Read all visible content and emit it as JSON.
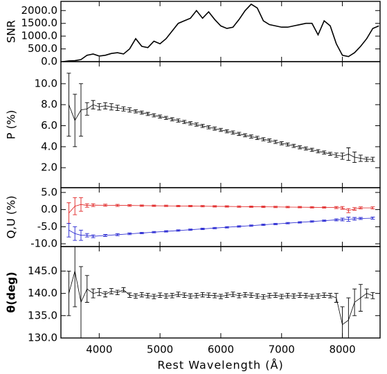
{
  "chart_data": [
    {
      "type": "line",
      "ylabel": "SNR",
      "x": [
        3400,
        3500,
        3600,
        3700,
        3800,
        3900,
        4000,
        4100,
        4200,
        4300,
        4400,
        4500,
        4600,
        4700,
        4800,
        4900,
        5000,
        5100,
        5200,
        5300,
        5400,
        5500,
        5600,
        5700,
        5800,
        5900,
        6000,
        6100,
        6200,
        6300,
        6400,
        6500,
        6600,
        6700,
        6800,
        6900,
        7000,
        7100,
        7200,
        7300,
        7400,
        7500,
        7600,
        7700,
        7800,
        7900,
        8000,
        8100,
        8200,
        8300,
        8400,
        8500,
        8600
      ],
      "series": [
        {
          "color": "#000000",
          "values": [
            0,
            30,
            40,
            80,
            250,
            300,
            220,
            250,
            320,
            350,
            300,
            500,
            900,
            600,
            550,
            800,
            700,
            900,
            1200,
            1500,
            1600,
            1700,
            2000,
            1700,
            1950,
            1650,
            1400,
            1300,
            1350,
            1650,
            2000,
            2250,
            2100,
            1600,
            1450,
            1400,
            1350,
            1350,
            1400,
            1450,
            1500,
            1500,
            1050,
            1600,
            1400,
            700,
            250,
            200,
            350,
            600,
            900,
            1300,
            1400
          ]
        }
      ],
      "xlim": [
        3370,
        8620
      ],
      "xticks": [
        4000,
        5000,
        6000,
        7000,
        8000
      ],
      "ylim": [
        0,
        2360
      ],
      "yticks": [
        {
          "value": 0,
          "label": "0.0"
        },
        {
          "value": 500,
          "label": "500.0"
        },
        {
          "value": 1000,
          "label": "1000.0"
        },
        {
          "value": 1500,
          "label": "1500.0"
        },
        {
          "value": 2000,
          "label": "2000.0"
        }
      ]
    },
    {
      "type": "errorbar",
      "ylabel": "P  (%)",
      "x": [
        3500,
        3600,
        3700,
        3800,
        3900,
        4000,
        4100,
        4200,
        4300,
        4400,
        4500,
        4600,
        4700,
        4800,
        4900,
        5000,
        5100,
        5200,
        5300,
        5400,
        5500,
        5600,
        5700,
        5800,
        5900,
        6000,
        6100,
        6200,
        6300,
        6400,
        6500,
        6600,
        6700,
        6800,
        6900,
        7000,
        7100,
        7200,
        7300,
        7400,
        7500,
        7600,
        7700,
        7800,
        7900,
        8000,
        8100,
        8200,
        8300,
        8400,
        8500
      ],
      "series": [
        {
          "color": "#000000",
          "values": [
            8.0,
            6.5,
            7.5,
            7.6,
            8.0,
            7.8,
            7.9,
            7.8,
            7.7,
            7.6,
            7.5,
            7.37,
            7.25,
            7.12,
            6.99,
            6.87,
            6.74,
            6.61,
            6.49,
            6.36,
            6.23,
            6.11,
            5.98,
            5.85,
            5.73,
            5.6,
            5.47,
            5.35,
            5.22,
            5.09,
            4.97,
            4.84,
            4.71,
            4.59,
            4.46,
            4.33,
            4.21,
            4.08,
            3.95,
            3.83,
            3.7,
            3.57,
            3.45,
            3.32,
            3.2,
            3.1,
            3.3,
            3.0,
            2.9,
            2.8,
            2.8
          ],
          "errors": [
            3.0,
            2.5,
            2.5,
            0.6,
            0.4,
            0.3,
            0.3,
            0.3,
            0.25,
            0.2,
            0.2,
            0.15,
            0.15,
            0.15,
            0.15,
            0.15,
            0.15,
            0.15,
            0.15,
            0.15,
            0.15,
            0.15,
            0.15,
            0.15,
            0.15,
            0.15,
            0.15,
            0.15,
            0.15,
            0.15,
            0.15,
            0.15,
            0.15,
            0.15,
            0.15,
            0.15,
            0.15,
            0.15,
            0.15,
            0.15,
            0.15,
            0.15,
            0.15,
            0.15,
            0.2,
            0.3,
            0.6,
            0.5,
            0.3,
            0.2,
            0.2
          ]
        }
      ],
      "xlim": [
        3370,
        8620
      ],
      "xticks": [
        4000,
        5000,
        6000,
        7000,
        8000
      ],
      "ylim": [
        0.1,
        12.1
      ],
      "yticks": [
        {
          "value": 2,
          "label": "2.0"
        },
        {
          "value": 4,
          "label": "4.0"
        },
        {
          "value": 6,
          "label": "6.0"
        },
        {
          "value": 8,
          "label": "8.0"
        },
        {
          "value": 10,
          "label": "10.0"
        }
      ]
    },
    {
      "type": "errorbar",
      "ylabel": "Q,U  (%)",
      "x": [
        3500,
        3600,
        3700,
        3800,
        3900,
        4100,
        4300,
        4500,
        4700,
        4900,
        5100,
        5300,
        5500,
        5700,
        5900,
        6100,
        6300,
        6500,
        6700,
        6900,
        7100,
        7300,
        7500,
        7700,
        7900,
        8000,
        8100,
        8200,
        8300,
        8500
      ],
      "series": [
        {
          "color": "#e02020",
          "values": [
            -1.0,
            1.0,
            1.5,
            1.2,
            1.3,
            1.27,
            1.23,
            1.2,
            1.16,
            1.13,
            1.09,
            1.06,
            1.02,
            0.99,
            0.95,
            0.92,
            0.88,
            0.85,
            0.81,
            0.78,
            0.74,
            0.71,
            0.67,
            0.64,
            0.6,
            0.5,
            -0.3,
            0.2,
            0.5,
            0.5
          ],
          "errors": [
            3.0,
            2.5,
            2.0,
            0.5,
            0.4,
            0.3,
            0.3,
            0.25,
            0.2,
            0.2,
            0.2,
            0.2,
            0.2,
            0.2,
            0.2,
            0.2,
            0.2,
            0.2,
            0.2,
            0.2,
            0.2,
            0.2,
            0.2,
            0.2,
            0.3,
            0.4,
            0.6,
            0.4,
            0.3,
            0.3
          ]
        },
        {
          "color": "#2020d0",
          "values": [
            -6.0,
            -7.0,
            -7.5,
            -7.5,
            -7.8,
            -7.56,
            -7.32,
            -7.08,
            -6.84,
            -6.6,
            -6.36,
            -6.12,
            -5.88,
            -5.64,
            -5.4,
            -5.16,
            -4.92,
            -4.68,
            -4.44,
            -4.2,
            -3.96,
            -3.72,
            -3.48,
            -3.24,
            -3.0,
            -2.9,
            -2.8,
            -2.7,
            -2.6,
            -2.5
          ],
          "errors": [
            2.0,
            2.0,
            1.5,
            0.5,
            0.4,
            0.3,
            0.3,
            0.25,
            0.2,
            0.2,
            0.2,
            0.2,
            0.2,
            0.2,
            0.2,
            0.2,
            0.2,
            0.2,
            0.2,
            0.2,
            0.2,
            0.2,
            0.2,
            0.2,
            0.3,
            0.4,
            0.6,
            0.4,
            0.3,
            0.3
          ]
        }
      ],
      "xlim": [
        3370,
        8620
      ],
      "xticks": [
        4000,
        5000,
        6000,
        7000,
        8000
      ],
      "ylim": [
        -10.8,
        6.4
      ],
      "yticks": [
        {
          "value": -10,
          "label": "-10.0"
        },
        {
          "value": -5,
          "label": "-5.0"
        },
        {
          "value": 0,
          "label": "0.0"
        },
        {
          "value": 5,
          "label": "5.0"
        }
      ]
    },
    {
      "type": "errorbar",
      "ylabel": "θ(deg)",
      "xlabel": "Rest Wavelength (Å)",
      "x": [
        3500,
        3600,
        3700,
        3800,
        3900,
        4000,
        4100,
        4200,
        4300,
        4400,
        4500,
        4600,
        4700,
        4800,
        4900,
        5000,
        5100,
        5200,
        5300,
        5400,
        5500,
        5600,
        5700,
        5800,
        5900,
        6000,
        6100,
        6200,
        6300,
        6400,
        6500,
        6600,
        6700,
        6800,
        6900,
        7000,
        7100,
        7200,
        7300,
        7400,
        7500,
        7600,
        7700,
        7800,
        7900,
        8000,
        8100,
        8200,
        8300,
        8400,
        8500
      ],
      "series": [
        {
          "color": "#000000",
          "values": [
            140.0,
            145.0,
            138.0,
            141.0,
            140.0,
            140.3,
            139.8,
            140.5,
            140.2,
            140.8,
            139.6,
            139.4,
            139.7,
            139.5,
            139.3,
            139.6,
            139.4,
            139.5,
            139.8,
            139.6,
            139.4,
            139.5,
            139.7,
            139.6,
            139.5,
            139.3,
            139.6,
            139.8,
            139.5,
            139.7,
            139.6,
            139.4,
            139.2,
            139.5,
            139.6,
            139.3,
            139.5,
            139.4,
            139.6,
            139.5,
            139.3,
            139.4,
            139.6,
            139.5,
            139.0,
            133.0,
            134.0,
            138.0,
            139.0,
            140.0,
            139.5
          ],
          "errors": [
            5.0,
            8.0,
            8.0,
            3.0,
            1.0,
            0.8,
            0.6,
            0.6,
            0.5,
            0.5,
            0.5,
            0.5,
            0.5,
            0.5,
            0.5,
            0.5,
            0.5,
            0.5,
            0.5,
            0.5,
            0.5,
            0.5,
            0.5,
            0.5,
            0.5,
            0.5,
            0.5,
            0.5,
            0.5,
            0.5,
            0.5,
            0.5,
            0.5,
            0.5,
            0.5,
            0.5,
            0.5,
            0.5,
            0.5,
            0.5,
            0.5,
            0.5,
            0.5,
            0.5,
            1.0,
            4.0,
            5.0,
            3.0,
            3.0,
            1.0,
            0.7
          ]
        }
      ],
      "xlim": [
        3370,
        8620
      ],
      "xticks": [
        4000,
        5000,
        6000,
        7000,
        8000
      ],
      "ylim": [
        130,
        150.5
      ],
      "yticks": [
        {
          "value": 130,
          "label": "130.0"
        },
        {
          "value": 135,
          "label": "135.0"
        },
        {
          "value": 140,
          "label": "140.0"
        },
        {
          "value": 145,
          "label": "145.0"
        }
      ]
    }
  ]
}
